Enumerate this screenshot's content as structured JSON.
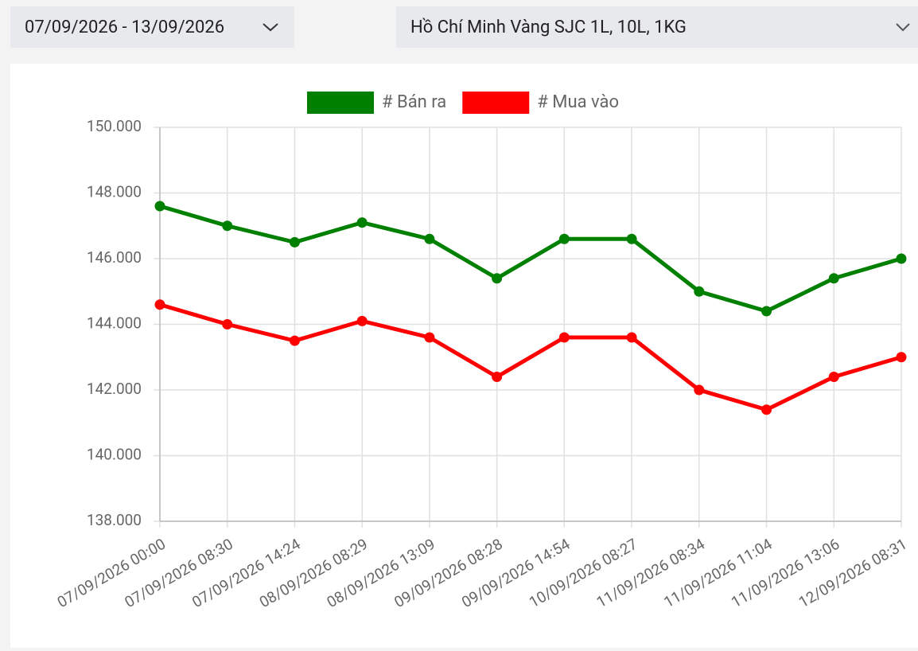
{
  "filters": {
    "date_range": "07/09/2026 - 13/09/2026",
    "location": "Hồ Chí Minh Vàng SJC 1L, 10L, 1KG"
  },
  "chart_data": {
    "type": "line",
    "categories": [
      "07/09/2026 00:00",
      "07/09/2026 08:30",
      "07/09/2026 14:24",
      "08/09/2026 08:29",
      "08/09/2026 13:09",
      "09/09/2026 08:28",
      "09/09/2026 14:54",
      "10/09/2026 08:27",
      "11/09/2026 08:34",
      "11/09/2026 11:04",
      "11/09/2026 13:06",
      "12/09/2026 08:31"
    ],
    "series": [
      {
        "name": "# Bán ra",
        "color": "#008000",
        "values": [
          147600,
          147000,
          146500,
          147100,
          146600,
          145400,
          146600,
          146600,
          145000,
          144400,
          145400,
          146000
        ]
      },
      {
        "name": "# Mua vào",
        "color": "#ff0000",
        "values": [
          144600,
          144000,
          143500,
          144100,
          143600,
          142400,
          143600,
          143600,
          142000,
          141400,
          142400,
          143000
        ]
      }
    ],
    "ylim": [
      138000,
      150000
    ],
    "yticks": [
      {
        "value": 138000,
        "label": "138.000"
      },
      {
        "value": 140000,
        "label": "140.000"
      },
      {
        "value": 142000,
        "label": "142.000"
      },
      {
        "value": 144000,
        "label": "144.000"
      },
      {
        "value": 146000,
        "label": "146.000"
      },
      {
        "value": 148000,
        "label": "148.000"
      },
      {
        "value": 150000,
        "label": "150.000"
      }
    ],
    "grid": true,
    "legend": "top"
  }
}
